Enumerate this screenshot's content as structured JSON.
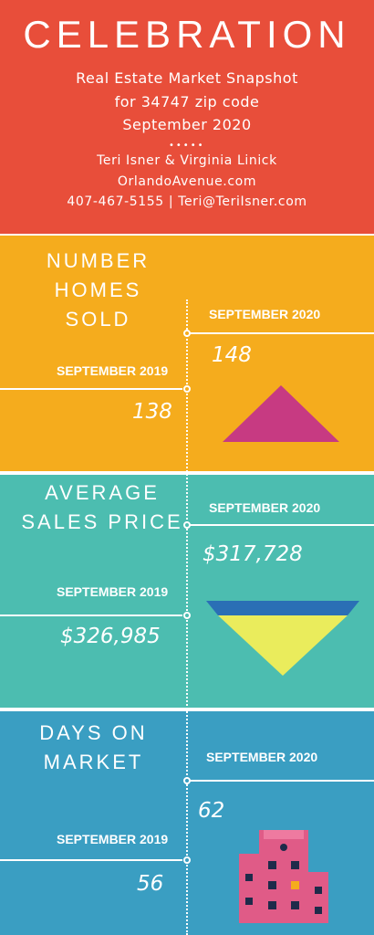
{
  "header": {
    "title": "CELEBRATION",
    "subtitle_line1": "Real Estate Market Snapshot",
    "subtitle_line2": "for 34747 zip code",
    "subtitle_line3": "September 2020",
    "dots": "•••••",
    "names": "Teri Isner & Virginia Linick",
    "website": "OrlandoAvenue.com",
    "phone_email": "407-467-5155 | Teri@TeriIsner.com"
  },
  "sections": {
    "homes_sold": {
      "title_line1": "NUMBER",
      "title_line2": "HOMES SOLD",
      "current_label": "SEPTEMBER 2020",
      "current_value": "148",
      "previous_label": "SEPTEMBER 2019",
      "previous_value": "138",
      "icon": "triangle-up-icon",
      "icon_color": "#c73a82"
    },
    "avg_price": {
      "title_line1": "AVERAGE",
      "title_line2": "SALES PRICE",
      "current_label": "SEPTEMBER 2020",
      "current_value": "$317,728",
      "previous_label": "SEPTEMBER 2019",
      "previous_value": "$326,985",
      "icon": "triangle-down-icon",
      "icon_colors": [
        "#2a6fb5",
        "#eaec5c"
      ]
    },
    "days_on_market": {
      "title_line1": "DAYS ON",
      "title_line2": "MARKET",
      "current_label": "SEPTEMBER 2020",
      "current_value": "62",
      "previous_label": "SEPTEMBER 2019",
      "previous_value": "56",
      "icon": "building-icon",
      "icon_color": "#e05b87"
    }
  },
  "colors": {
    "header": "#e84e3a",
    "section1": "#f5ac1d",
    "section2": "#4cbdb0",
    "section3": "#3a9ec2"
  }
}
